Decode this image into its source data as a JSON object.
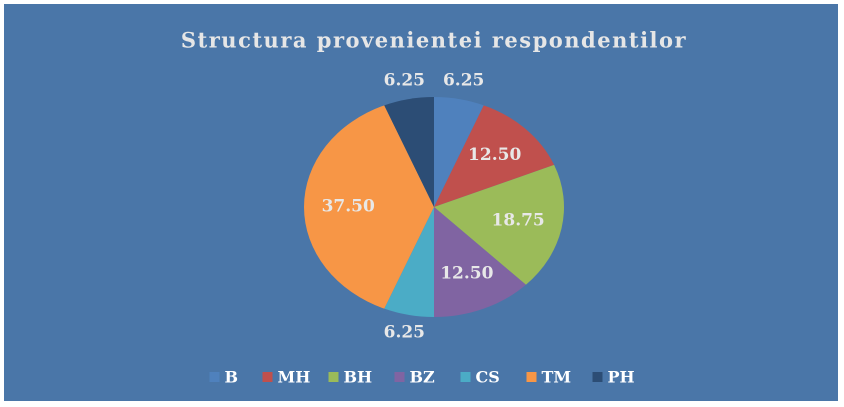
{
  "chart_data": {
    "type": "pie",
    "title": "Structura provenientei respondentilor",
    "categories": [
      "B",
      "MH",
      "BH",
      "BZ",
      "CS",
      "TM",
      "PH"
    ],
    "values": [
      6.25,
      12.5,
      18.75,
      12.5,
      6.25,
      37.5,
      6.25
    ],
    "value_labels": [
      "6.25",
      "12.50",
      "18.75",
      "12.50",
      "6.25",
      "37.50",
      "6.25"
    ],
    "colors": [
      "#4f81bd",
      "#c0504d",
      "#9bbb59",
      "#8064a2",
      "#4bacc6",
      "#f79646",
      "#2c4d75"
    ],
    "legend": "bottom"
  }
}
